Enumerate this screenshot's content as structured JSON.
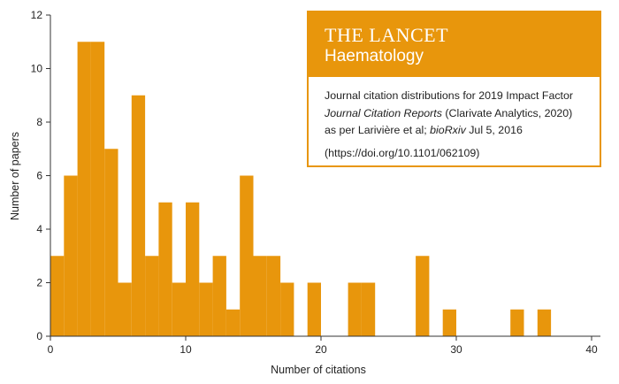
{
  "colors": {
    "bar": "#E8960C",
    "axis": "#333333",
    "text": "#222222"
  },
  "chart_data": {
    "type": "bar",
    "xlabel": "Number of citations",
    "ylabel": "Number of papers",
    "xlim": [
      0,
      40
    ],
    "ylim": [
      0,
      12
    ],
    "xticks": [
      "0",
      "10",
      "20",
      "30",
      "40"
    ],
    "yticks": [
      "0",
      "2",
      "4",
      "6",
      "8",
      "10",
      "12"
    ],
    "bin_width": 1,
    "bins": [
      {
        "x": 0,
        "count": 3
      },
      {
        "x": 1,
        "count": 6
      },
      {
        "x": 2,
        "count": 11
      },
      {
        "x": 3,
        "count": 11
      },
      {
        "x": 4,
        "count": 7
      },
      {
        "x": 5,
        "count": 2
      },
      {
        "x": 6,
        "count": 9
      },
      {
        "x": 7,
        "count": 3
      },
      {
        "x": 8,
        "count": 5
      },
      {
        "x": 9,
        "count": 2
      },
      {
        "x": 10,
        "count": 5
      },
      {
        "x": 11,
        "count": 2
      },
      {
        "x": 12,
        "count": 3
      },
      {
        "x": 13,
        "count": 1
      },
      {
        "x": 14,
        "count": 6
      },
      {
        "x": 15,
        "count": 3
      },
      {
        "x": 16,
        "count": 3
      },
      {
        "x": 17,
        "count": 2
      },
      {
        "x": 19,
        "count": 2
      },
      {
        "x": 22,
        "count": 2
      },
      {
        "x": 23,
        "count": 2
      },
      {
        "x": 27,
        "count": 3
      },
      {
        "x": 29,
        "count": 1
      },
      {
        "x": 34,
        "count": 1
      },
      {
        "x": 36,
        "count": 1
      }
    ]
  },
  "info": {
    "journal": "THE LANCET",
    "subtitle": "Haematology",
    "line1": "Journal citation distributions for 2019 Impact Factor",
    "line2_italic": "Journal Citation Reports",
    "line2_rest": " (Clarivate Analytics, 2020)",
    "line3_start": "as per Larivière et al; ",
    "line3_italic": "bioRxiv",
    "line3_end": " Jul 5, 2016",
    "doi": "(https://doi.org/10.1101/062109)"
  }
}
